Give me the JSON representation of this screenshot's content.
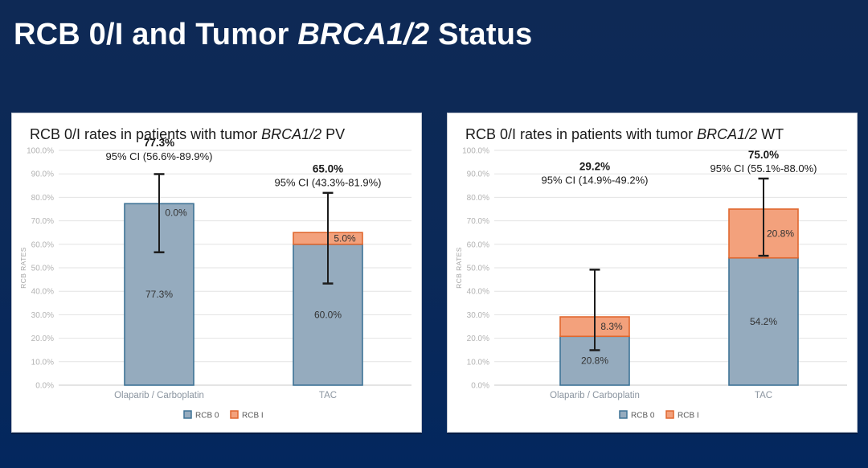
{
  "slide": {
    "title_prefix": "RCB 0/I and Tumor ",
    "title_italic": "BRCA1/2",
    "title_suffix": " Status"
  },
  "colors": {
    "background_top": "#0e2955",
    "background_bottom": "#03275e",
    "panel_background": "#ffffff",
    "slide_title_text": "#ffffff",
    "chart_title_text": "#1a1a1a",
    "gridline": "#e3e3e3",
    "axis_line": "#c9c9c9",
    "axis_tick_text": "#b2b2b2",
    "y_axis_label_text": "#a6a6a6",
    "category_text": "#8b95a0",
    "legend_text": "#595959",
    "error_bar": "#1c1c1c",
    "annotation_text": "#1a1a1a",
    "bar_label_text": "#333333",
    "rcb0_fill": "#95abbe",
    "rcb0_border": "#3e7396",
    "rcb1_fill": "#f3a17c",
    "rcb1_border": "#e0672e"
  },
  "chart_data": [
    {
      "type": "bar",
      "stacked": true,
      "title": "RCB 0/I rates in patients with tumor BRCA1/2 PV",
      "title_parts": {
        "prefix": "RCB 0/I rates in patients with tumor ",
        "italic": "BRCA1/2",
        "suffix": " PV"
      },
      "categories": [
        "Olaparib / Carboplatin",
        "TAC"
      ],
      "series": [
        {
          "name": "RCB 0",
          "values": [
            77.3,
            60.0
          ],
          "labels": [
            "77.3%",
            "60.0%"
          ]
        },
        {
          "name": "RCB I",
          "values": [
            0.0,
            5.0
          ],
          "labels": [
            "0.0%",
            "5.0%"
          ]
        }
      ],
      "totals": [
        77.3,
        65.0
      ],
      "error_bars": [
        {
          "low": 56.6,
          "high": 89.9
        },
        {
          "low": 43.3,
          "high": 81.9
        }
      ],
      "annotations": [
        {
          "total": "77.3%",
          "ci": "95% CI (56.6%-89.9%)",
          "y_pct": 103
        },
        {
          "total": "65.0%",
          "ci": "95% CI (43.3%-81.9%)",
          "y_pct": 92
        }
      ],
      "ylabel": "RCB RATES",
      "xlabel": "",
      "ylim": [
        0,
        100
      ],
      "ytick_step": 10,
      "ytick_suffix": "%",
      "grid": true,
      "legend": [
        "RCB 0",
        "RCB I"
      ],
      "legend_position": "bottom"
    },
    {
      "type": "bar",
      "stacked": true,
      "title": "RCB 0/I rates in patients with tumor BRCA1/2 WT",
      "title_parts": {
        "prefix": "RCB 0/I rates in patients with tumor ",
        "italic": "BRCA1/2",
        "suffix": " WT"
      },
      "categories": [
        "Olaparib / Carboplatin",
        "TAC"
      ],
      "series": [
        {
          "name": "RCB 0",
          "values": [
            20.8,
            54.2
          ],
          "labels": [
            "20.8%",
            "54.2%"
          ]
        },
        {
          "name": "RCB I",
          "values": [
            8.3,
            20.8
          ],
          "labels": [
            "8.3%",
            "20.8%"
          ]
        }
      ],
      "totals": [
        29.2,
        75.0
      ],
      "error_bars": [
        {
          "low": 14.9,
          "high": 49.2
        },
        {
          "low": 55.1,
          "high": 88.0
        }
      ],
      "annotations": [
        {
          "total": "29.2%",
          "ci": "95% CI (14.9%-49.2%)",
          "y_pct": 93
        },
        {
          "total": "75.0%",
          "ci": "95% CI (55.1%-88.0%)",
          "y_pct": 98
        }
      ],
      "ylabel": "RCB RATES",
      "xlabel": "",
      "ylim": [
        0,
        100
      ],
      "ytick_step": 10,
      "ytick_suffix": "%",
      "grid": true,
      "legend": [
        "RCB 0",
        "RCB I"
      ],
      "legend_position": "bottom"
    }
  ]
}
